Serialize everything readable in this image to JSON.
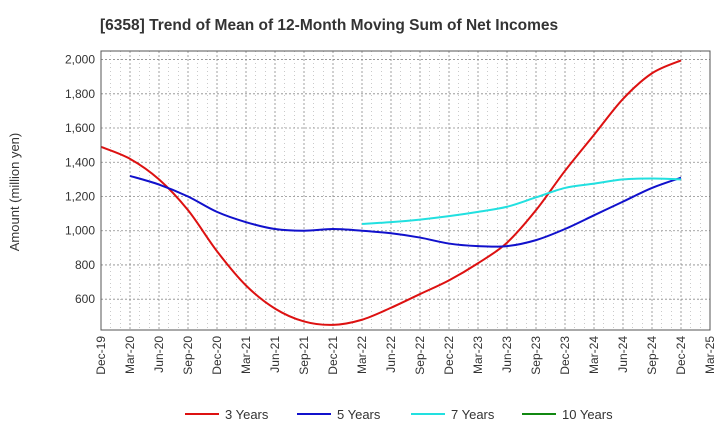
{
  "chart_data": {
    "type": "line",
    "title": "[6358]  Trend of Mean of 12-Month Moving Sum of Net Incomes",
    "ylabel": "Amount (million yen)",
    "xlabel": "",
    "ylim": [
      420,
      2050
    ],
    "yticks": [
      600,
      800,
      1000,
      1200,
      1400,
      1600,
      1800,
      2000
    ],
    "ytick_labels": [
      "600",
      "800",
      "1,000",
      "1,200",
      "1,400",
      "1,600",
      "1,800",
      "2,000"
    ],
    "x_labels": [
      "Dec-19",
      "Mar-20",
      "Jun-20",
      "Sep-20",
      "Dec-20",
      "Mar-21",
      "Jun-21",
      "Sep-21",
      "Dec-21",
      "Mar-22",
      "Jun-22",
      "Sep-22",
      "Dec-22",
      "Mar-23",
      "Jun-23",
      "Sep-23",
      "Dec-23",
      "Mar-24",
      "Jun-24",
      "Sep-24",
      "Dec-24",
      "Mar-25"
    ],
    "grid": true,
    "legend_position": "bottom",
    "series": [
      {
        "name": "3 Years",
        "color": "#dd1111",
        "points": [
          [
            0,
            1490
          ],
          [
            1,
            1420
          ],
          [
            2,
            1300
          ],
          [
            3,
            1120
          ],
          [
            4,
            880
          ],
          [
            5,
            680
          ],
          [
            6,
            545
          ],
          [
            7,
            470
          ],
          [
            8,
            450
          ],
          [
            9,
            480
          ],
          [
            10,
            550
          ],
          [
            11,
            630
          ],
          [
            12,
            710
          ],
          [
            13,
            810
          ],
          [
            14,
            930
          ],
          [
            15,
            1120
          ],
          [
            16,
            1350
          ],
          [
            17,
            1560
          ],
          [
            18,
            1770
          ],
          [
            19,
            1920
          ],
          [
            20,
            1995
          ]
        ]
      },
      {
        "name": "5 Years",
        "color": "#1111cc",
        "points": [
          [
            1,
            1320
          ],
          [
            2,
            1270
          ],
          [
            3,
            1200
          ],
          [
            4,
            1110
          ],
          [
            5,
            1050
          ],
          [
            6,
            1010
          ],
          [
            7,
            1000
          ],
          [
            8,
            1010
          ],
          [
            9,
            1000
          ],
          [
            10,
            985
          ],
          [
            11,
            960
          ],
          [
            12,
            925
          ],
          [
            13,
            910
          ],
          [
            14,
            910
          ],
          [
            15,
            945
          ],
          [
            16,
            1010
          ],
          [
            17,
            1090
          ],
          [
            18,
            1170
          ],
          [
            19,
            1250
          ],
          [
            20,
            1310
          ]
        ]
      },
      {
        "name": "7 Years",
        "color": "#22e0e0",
        "points": [
          [
            9,
            1040
          ],
          [
            10,
            1050
          ],
          [
            11,
            1065
          ],
          [
            12,
            1085
          ],
          [
            13,
            1110
          ],
          [
            14,
            1140
          ],
          [
            15,
            1195
          ],
          [
            16,
            1250
          ],
          [
            17,
            1275
          ],
          [
            18,
            1300
          ],
          [
            19,
            1305
          ],
          [
            20,
            1300
          ]
        ]
      },
      {
        "name": "10 Years",
        "color": "#118811",
        "points": []
      }
    ]
  }
}
